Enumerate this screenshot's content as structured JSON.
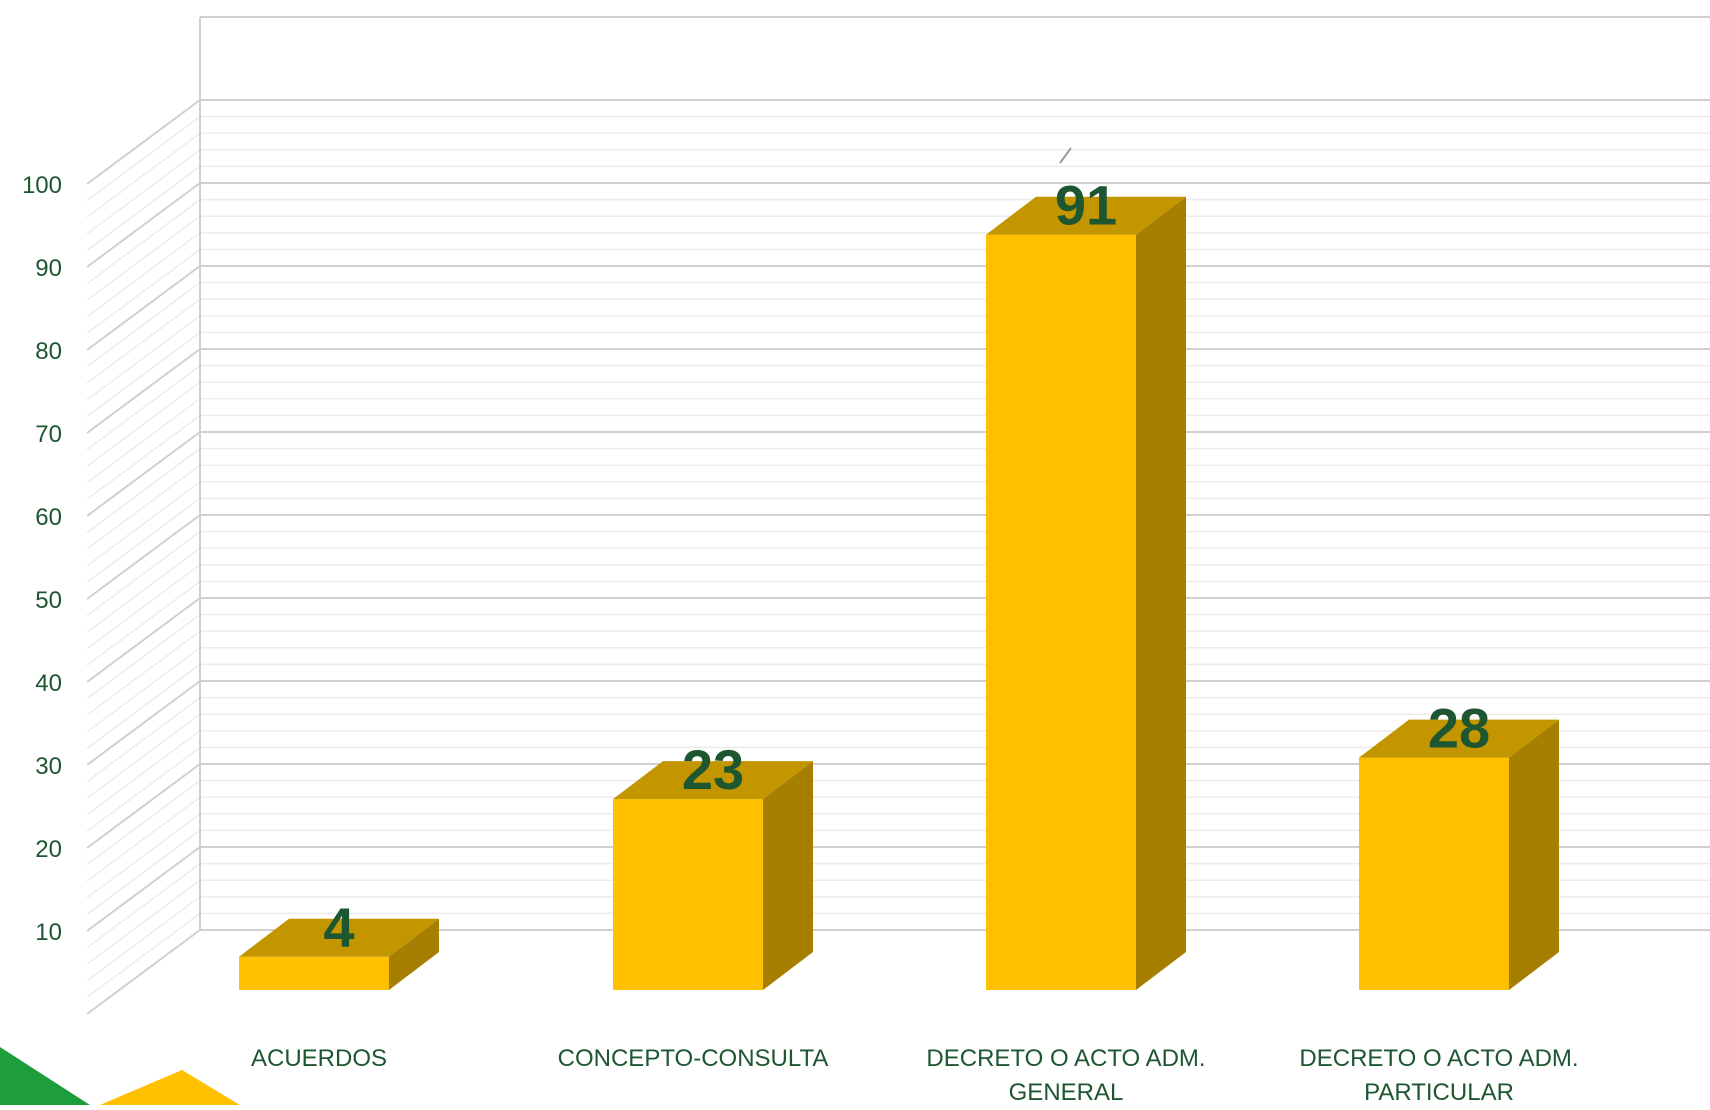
{
  "chart_data": {
    "type": "bar",
    "style": "3d-column",
    "categories": [
      [
        "ACUERDOS"
      ],
      [
        "CONCEPTO-CONSULTA"
      ],
      [
        "DECRETO O ACTO ADM.",
        "GENERAL"
      ],
      [
        "DECRETO O ACTO ADM.",
        "PARTICULAR"
      ]
    ],
    "values": [
      4,
      23,
      91,
      28
    ],
    "data_labels": [
      "4",
      "23",
      "91",
      "28"
    ],
    "title": "",
    "xlabel": "",
    "ylabel": "",
    "ylim": [
      0,
      100
    ],
    "y_ticks": [
      {
        "value": 10,
        "label": "10"
      },
      {
        "value": 20,
        "label": "20"
      },
      {
        "value": 30,
        "label": "30"
      },
      {
        "value": 40,
        "label": "40"
      },
      {
        "value": 50,
        "label": "50"
      },
      {
        "value": 60,
        "label": "60"
      },
      {
        "value": 70,
        "label": "70"
      },
      {
        "value": 80,
        "label": "80"
      },
      {
        "value": 90,
        "label": "90"
      },
      {
        "value": 100,
        "label": "100"
      }
    ],
    "minor_grid_step": 2,
    "grid": true,
    "legend": "none",
    "colors": {
      "bar_front": "#FFC000",
      "bar_top": "#C39600",
      "bar_side": "#A67F00",
      "data_label": "#1E5631",
      "axis_text": "#1E5631",
      "major_grid": "#D0D0D0",
      "minor_grid": "#ECECEC",
      "decor_green": "#1E9E3A",
      "decor_yellow": "#FFC000"
    }
  }
}
